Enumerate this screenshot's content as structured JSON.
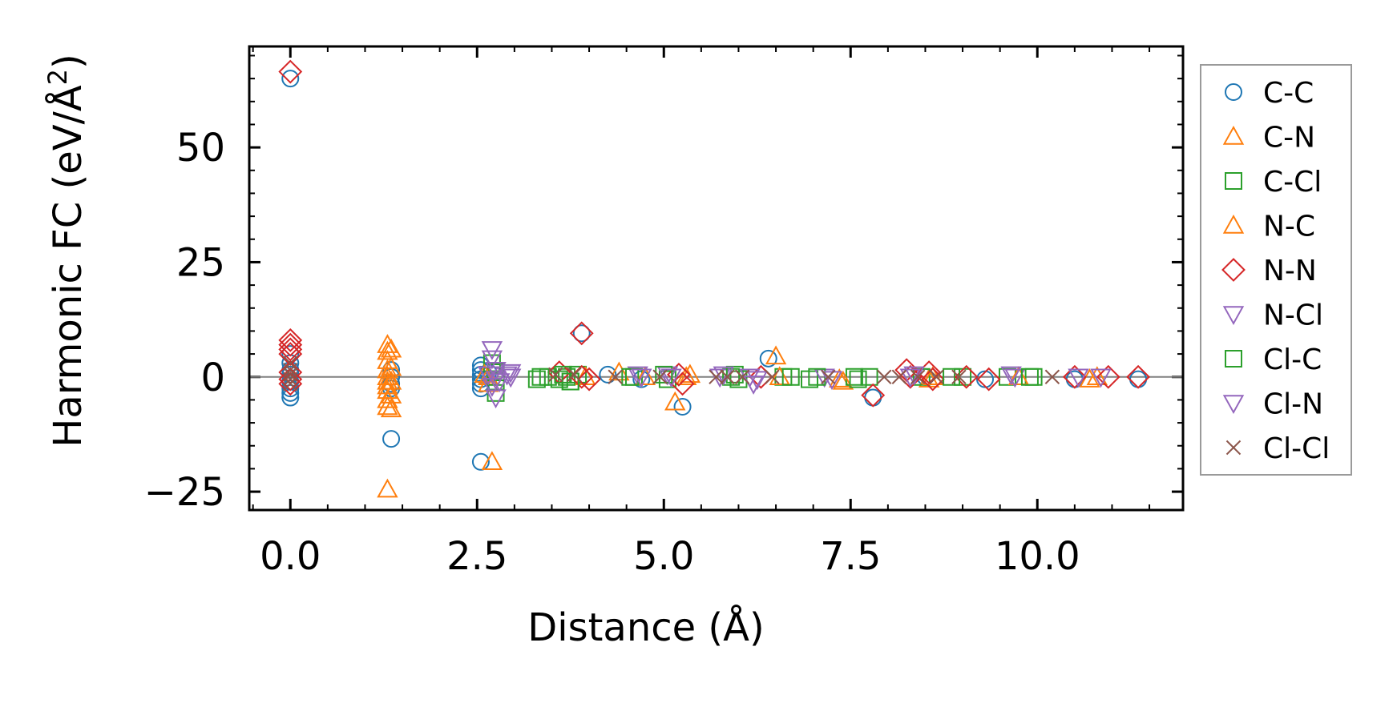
{
  "chart_data": {
    "type": "scatter",
    "title": "",
    "xlabel": "Distance (Å)",
    "ylabel_main": "Harmonic FC (eV/Å",
    "ylabel_sup": "2",
    "ylabel_close": ")",
    "xlim": [
      -0.55,
      11.95
    ],
    "ylim": [
      -29,
      72
    ],
    "x_ticks": [
      0.0,
      2.5,
      5.0,
      7.5,
      10.0
    ],
    "x_tick_labels": [
      "0.0",
      "2.5",
      "5.0",
      "7.5",
      "10.0"
    ],
    "y_ticks": [
      -25,
      0,
      25,
      50
    ],
    "y_tick_labels": [
      "−25",
      "0",
      "25",
      "50"
    ],
    "zero_line": 0,
    "grid": false,
    "legend_position": "outside-right",
    "series": [
      {
        "name": "C-C",
        "marker": "circle",
        "color": "#1f77b4",
        "points": [
          [
            0.0,
            65
          ],
          [
            0.0,
            5
          ],
          [
            0.0,
            3
          ],
          [
            0.0,
            1.5
          ],
          [
            0.0,
            0.5
          ],
          [
            0.0,
            -1
          ],
          [
            0.0,
            -2.5
          ],
          [
            0.0,
            -3.5
          ],
          [
            0.0,
            -4.5
          ],
          [
            1.35,
            1.5
          ],
          [
            1.35,
            0
          ],
          [
            1.35,
            -1.5
          ],
          [
            1.35,
            -2.5
          ],
          [
            1.35,
            -13.5
          ],
          [
            2.55,
            2.5
          ],
          [
            2.55,
            1.5
          ],
          [
            2.55,
            0.5
          ],
          [
            2.55,
            -0.5
          ],
          [
            2.55,
            -1.5
          ],
          [
            2.55,
            -2.5
          ],
          [
            2.55,
            -18.5
          ],
          [
            2.65,
            1
          ],
          [
            3.9,
            9.5
          ],
          [
            4.25,
            0.5
          ],
          [
            4.7,
            -0.5
          ],
          [
            5.25,
            -6.5
          ],
          [
            6.4,
            4
          ],
          [
            7.8,
            -4.5
          ],
          [
            8.5,
            0
          ],
          [
            9.3,
            -0.5
          ],
          [
            10.5,
            -0.5
          ],
          [
            11.35,
            -0.5
          ]
        ]
      },
      {
        "name": "C-N",
        "marker": "triangle-up",
        "color": "#ff7f0e",
        "points": [
          [
            1.3,
            7
          ],
          [
            1.3,
            5.5
          ],
          [
            1.3,
            3.5
          ],
          [
            1.3,
            1.5
          ],
          [
            1.3,
            0
          ],
          [
            1.3,
            -1
          ],
          [
            1.3,
            -2
          ],
          [
            1.3,
            -3
          ],
          [
            1.3,
            -5
          ],
          [
            1.3,
            -6.5
          ],
          [
            1.3,
            -24.5
          ],
          [
            2.65,
            0
          ],
          [
            2.65,
            -1.5
          ],
          [
            2.7,
            -18.5
          ],
          [
            4.4,
            1
          ],
          [
            5.15,
            -5.5
          ],
          [
            5.3,
            0
          ],
          [
            6.5,
            4.5
          ],
          [
            7.35,
            -0.5
          ],
          [
            8.55,
            -0.5
          ],
          [
            10.7,
            -0.5
          ]
        ]
      },
      {
        "name": "C-Cl",
        "marker": "square",
        "color": "#2ca02c",
        "points": [
          [
            2.7,
            3
          ],
          [
            2.75,
            1
          ],
          [
            2.75,
            -1
          ],
          [
            2.75,
            -3.5
          ],
          [
            3.3,
            -0.5
          ],
          [
            3.45,
            0
          ],
          [
            3.6,
            -0.5
          ],
          [
            3.7,
            0
          ],
          [
            3.75,
            -1
          ],
          [
            3.85,
            0.5
          ],
          [
            4.6,
            0
          ],
          [
            5.05,
            -0.5
          ],
          [
            5.9,
            0
          ],
          [
            6.0,
            -0.5
          ],
          [
            6.6,
            0
          ],
          [
            6.95,
            -0.5
          ],
          [
            7.55,
            0
          ],
          [
            7.75,
            0
          ],
          [
            8.45,
            0
          ],
          [
            9.0,
            0
          ],
          [
            9.6,
            0
          ],
          [
            9.95,
            0
          ]
        ]
      },
      {
        "name": "N-C",
        "marker": "triangle-up",
        "color": "#ff7f0e",
        "points": [
          [
            1.35,
            6
          ],
          [
            1.35,
            2
          ],
          [
            1.35,
            -1
          ],
          [
            1.35,
            -4
          ],
          [
            1.35,
            -7
          ],
          [
            2.6,
            0.5
          ],
          [
            3.95,
            0
          ],
          [
            4.75,
            0
          ],
          [
            5.35,
            0.5
          ],
          [
            6.55,
            0
          ],
          [
            7.4,
            -1
          ],
          [
            8.6,
            0
          ],
          [
            9.75,
            0
          ],
          [
            10.8,
            0
          ]
        ]
      },
      {
        "name": "N-N",
        "marker": "diamond",
        "color": "#d62728",
        "points": [
          [
            0.0,
            66.5
          ],
          [
            0.0,
            8
          ],
          [
            0.0,
            7
          ],
          [
            0.0,
            6
          ],
          [
            0.0,
            5
          ],
          [
            0.0,
            1
          ],
          [
            0.0,
            -0.5
          ],
          [
            0.0,
            -1.5
          ],
          [
            3.6,
            1
          ],
          [
            3.9,
            9.5
          ],
          [
            3.9,
            0
          ],
          [
            4.0,
            -0.5
          ],
          [
            5.2,
            0.5
          ],
          [
            5.25,
            -1.5
          ],
          [
            6.3,
            0
          ],
          [
            7.8,
            -4
          ],
          [
            8.25,
            1.5
          ],
          [
            8.3,
            0
          ],
          [
            8.55,
            1
          ],
          [
            8.6,
            -0.5
          ],
          [
            9.05,
            0
          ],
          [
            9.35,
            -0.5
          ],
          [
            10.5,
            0
          ],
          [
            10.95,
            0
          ],
          [
            11.35,
            0
          ]
        ]
      },
      {
        "name": "N-Cl",
        "marker": "triangle-down",
        "color": "#9467bd",
        "points": [
          [
            2.7,
            6
          ],
          [
            2.7,
            4
          ],
          [
            2.75,
            1.5
          ],
          [
            2.75,
            -0.5
          ],
          [
            2.7,
            -2
          ],
          [
            2.75,
            -4.5
          ],
          [
            2.9,
            0.5
          ],
          [
            2.95,
            1
          ],
          [
            4.65,
            0.5
          ],
          [
            5.05,
            0.5
          ],
          [
            5.75,
            0
          ],
          [
            6.2,
            -1.5
          ],
          [
            7.15,
            0
          ],
          [
            8.35,
            0.5
          ],
          [
            9.7,
            0
          ],
          [
            10.55,
            0
          ]
        ]
      },
      {
        "name": "Cl-C",
        "marker": "square",
        "color": "#2ca02c",
        "points": [
          [
            3.35,
            0
          ],
          [
            3.65,
            0.5
          ],
          [
            3.75,
            -1
          ],
          [
            4.55,
            0
          ],
          [
            5.0,
            0.5
          ],
          [
            5.95,
            0.5
          ],
          [
            6.7,
            0
          ],
          [
            7.05,
            0
          ],
          [
            7.6,
            -0.5
          ],
          [
            8.85,
            0
          ],
          [
            9.9,
            0
          ]
        ]
      },
      {
        "name": "Cl-N",
        "marker": "triangle-down",
        "color": "#9467bd",
        "points": [
          [
            2.65,
            0.5
          ],
          [
            2.8,
            -1
          ],
          [
            2.95,
            0
          ],
          [
            4.7,
            0
          ],
          [
            5.1,
            0
          ],
          [
            5.8,
            0.5
          ],
          [
            6.15,
            0
          ],
          [
            6.25,
            -0.5
          ],
          [
            7.25,
            -0.5
          ],
          [
            8.3,
            0
          ],
          [
            9.65,
            0.5
          ],
          [
            10.85,
            0
          ]
        ]
      },
      {
        "name": "Cl-Cl",
        "marker": "x",
        "color": "#8c564b",
        "points": [
          [
            0.0,
            3
          ],
          [
            0.0,
            1.5
          ],
          [
            0.0,
            0.5
          ],
          [
            0.0,
            -0.5
          ],
          [
            0.0,
            -1.5
          ],
          [
            3.55,
            0.5
          ],
          [
            3.8,
            0.5
          ],
          [
            4.35,
            0
          ],
          [
            4.95,
            0
          ],
          [
            5.7,
            0
          ],
          [
            5.85,
            0
          ],
          [
            6.05,
            0
          ],
          [
            6.45,
            0
          ],
          [
            7.2,
            0
          ],
          [
            7.95,
            0
          ],
          [
            8.15,
            0
          ],
          [
            8.4,
            0
          ],
          [
            8.65,
            0
          ],
          [
            8.95,
            0
          ],
          [
            10.2,
            0
          ]
        ]
      }
    ]
  }
}
